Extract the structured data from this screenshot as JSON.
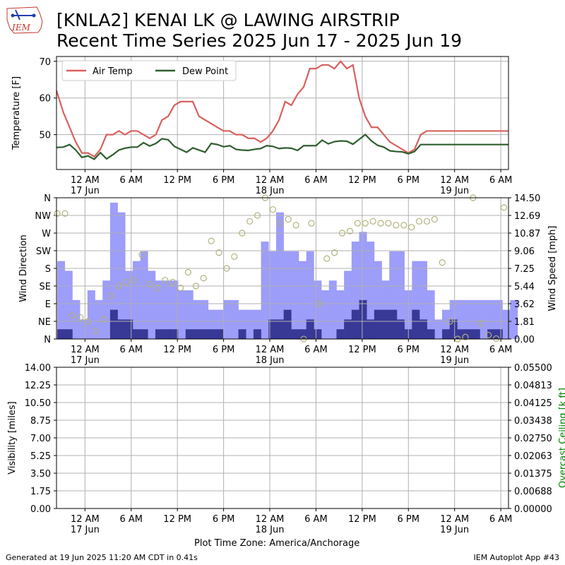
{
  "header": {
    "logo_text": "IEM",
    "title_line1": "[KNLA2] KENAI LK @ LAWING AIRSTRIP",
    "title_line2": "Recent Time Series 2025 Jun 17 - 2025 Jun 19"
  },
  "footer": {
    "generated": "Generated at 19 Jun 2025 11:20 AM CDT in 0.41s",
    "app": "IEM Autoplot App #43",
    "timezone": "Plot Time Zone: America/Anchorage"
  },
  "colors": {
    "air_temp": "#d9605e",
    "dew_point": "#2e5e2e",
    "wind_speed": "#9d9dfa",
    "wind_gust": "#383897",
    "wind_dir": "#b2b27c",
    "grid": "#b0b0b0",
    "ceiling_axis": "#008000"
  },
  "chart_data": [
    {
      "type": "line",
      "ylabel": "Temperature [F]",
      "ylim": [
        40.5,
        71.3
      ],
      "yticks": [
        50,
        60,
        70
      ],
      "xlim": [
        -3.7,
        55
      ],
      "x_unit": "hours since 17 Jun 12 AM",
      "xticks": [
        {
          "x": 0,
          "label": "12 AM",
          "sub": "17 Jun"
        },
        {
          "x": 6,
          "label": "6 AM",
          "sub": ""
        },
        {
          "x": 12,
          "label": "12 PM",
          "sub": ""
        },
        {
          "x": 18,
          "label": "6 PM",
          "sub": ""
        },
        {
          "x": 24,
          "label": "12 AM",
          "sub": "18 Jun"
        },
        {
          "x": 30,
          "label": "6 AM",
          "sub": ""
        },
        {
          "x": 36,
          "label": "12 PM",
          "sub": ""
        },
        {
          "x": 42,
          "label": "6 PM",
          "sub": ""
        },
        {
          "x": 48,
          "label": "12 AM",
          "sub": "19 Jun"
        },
        {
          "x": 54,
          "label": "6 AM",
          "sub": ""
        }
      ],
      "legend": "top-left",
      "grid": true,
      "series": [
        {
          "name": "Air Temp",
          "x": [
            -3.7,
            -2.8,
            -2,
            -1.2,
            -0.4,
            0.4,
            1.2,
            2,
            2.8,
            3.6,
            4.4,
            5.2,
            6,
            6.8,
            7.6,
            8.4,
            9.2,
            10,
            10.8,
            11.6,
            12.4,
            13.2,
            14,
            14.8,
            15.6,
            16.4,
            17.2,
            18,
            18.8,
            19.6,
            20.4,
            21.2,
            22,
            22.8,
            23.6,
            24.4,
            25.2,
            26,
            26.8,
            27.6,
            28.4,
            29.2,
            30,
            30.8,
            31.6,
            32.4,
            33.2,
            34,
            34.8,
            35.6,
            36.4,
            37.2,
            38,
            38.8,
            39.6,
            40.4,
            41.2,
            42,
            42.8,
            43.6,
            44.4,
            45.2,
            46,
            46.8,
            47.6,
            48.4,
            49.2,
            50,
            50.8,
            51.6,
            52.4,
            53.2,
            54,
            54.8,
            55
          ],
          "values": [
            62,
            56,
            52,
            48,
            45,
            45,
            44,
            46,
            50,
            50,
            51,
            50,
            51,
            51,
            50,
            49,
            50,
            54,
            55,
            58,
            59,
            59,
            59,
            55,
            54,
            53,
            52,
            51,
            51,
            50,
            50,
            49,
            49,
            48,
            49,
            51,
            54,
            59,
            58,
            61,
            63,
            68,
            68,
            69,
            69,
            68,
            70,
            68,
            69,
            60,
            55,
            52,
            52,
            50,
            48,
            47,
            46,
            45,
            46,
            50,
            51,
            51,
            51,
            51,
            51,
            51,
            51,
            51,
            51,
            51,
            51,
            51,
            51,
            51,
            51
          ],
          "values_note": ""
        },
        {
          "name": "Dew Point",
          "values": [
            46.5,
            46.6,
            47.3,
            45.8,
            43.8,
            44.2,
            43.3,
            45.1,
            43.4,
            44.5,
            45.8,
            46.3,
            46.6,
            46.6,
            47.8,
            46.9,
            47.6,
            48.9,
            48.6,
            46.8,
            46.0,
            45.2,
            46.4,
            45.8,
            45.2,
            47.6,
            47.3,
            46.7,
            47.0,
            46.0,
            45.8,
            45.7,
            46.0,
            46.2,
            47.0,
            46.8,
            46.2,
            46.4,
            46.3,
            45.7,
            47.0,
            47.0,
            47.0,
            48.5,
            47.5,
            48.1,
            48.3,
            48.2,
            47.4,
            48.7,
            50.0,
            48.3,
            47.1,
            46.6,
            45.6,
            45.4,
            45.3,
            44.8,
            45.4,
            47.3,
            47.3,
            47.3,
            47.3,
            47.3,
            47.3,
            47.3,
            47.3,
            47.3,
            47.3,
            47.3,
            47.3,
            47.3,
            47.3,
            47.3,
            47.3
          ]
        }
      ]
    },
    {
      "type": "bar",
      "ylabel": "Wind Direction",
      "y2label": "Wind Speed [mph]",
      "dir_ticks": [
        "N",
        "NE",
        "E",
        "SE",
        "S",
        "SW",
        "W",
        "NW",
        "N"
      ],
      "speed_ticks": [
        "0.00",
        "1.81",
        "3.62",
        "5.44",
        "7.25",
        "9.06",
        "10.87",
        "12.69",
        "14.50"
      ],
      "speed_lim": [
        0,
        14.5
      ],
      "bar_start": -3.6,
      "bar_step": 0.98,
      "series": [
        {
          "name": "Wind Speed",
          "values": [
            8,
            7,
            4,
            2,
            5,
            4,
            6,
            14,
            13,
            7,
            8,
            9,
            7,
            6,
            6,
            6,
            5,
            5,
            4,
            4,
            3,
            3,
            4,
            4,
            3,
            3,
            3,
            10,
            9,
            13,
            9,
            9,
            8,
            9,
            6,
            5,
            6,
            5,
            7,
            10,
            11,
            10,
            8,
            6,
            9,
            9,
            5,
            8,
            8,
            5,
            2,
            3,
            4,
            4,
            4,
            4,
            4,
            4,
            4,
            3,
            4
          ]
        },
        {
          "name": "Wind Gust",
          "values": [
            1,
            1,
            0,
            0,
            0,
            0,
            0,
            3,
            2,
            2,
            1,
            1,
            0,
            1,
            1,
            1,
            0,
            1,
            1,
            1,
            1,
            1,
            0,
            0,
            1,
            0,
            1,
            0,
            2,
            2,
            3,
            1,
            1,
            2,
            1,
            0,
            0,
            1,
            2,
            3,
            4,
            2,
            3,
            3,
            3,
            2,
            1,
            3,
            2,
            1,
            0,
            1,
            2,
            1,
            1,
            1,
            0,
            1,
            1,
            0,
            0
          ]
        },
        {
          "name": "Wind Direction",
          "type": "scatter",
          "x": [
            -3.6,
            -2.6,
            -1.6,
            -0.6,
            0.4,
            1.4,
            2.4,
            3.4,
            4.4,
            5.4,
            6.4,
            7.4,
            8.4,
            9.4,
            10.4,
            11.4,
            12.4,
            13.4,
            14.4,
            15.4,
            16.4,
            17.4,
            18.4,
            19.4,
            20.4,
            21.4,
            22.4,
            23.4,
            24.4,
            25.4,
            26.4,
            27.4,
            28.4,
            29.4,
            30.4,
            31.4,
            32.4,
            33.4,
            34.4,
            35.4,
            36.4,
            37.4,
            38.4,
            39.4,
            40.4,
            41.4,
            42.4,
            43.4,
            44.4,
            45.4,
            46.4,
            47.4,
            48.4,
            49.4,
            50.4,
            51.4,
            52.4,
            53.4,
            54.4
          ],
          "values": [
            320,
            320,
            60,
            55,
            45,
            20,
            50,
            110,
            135,
            145,
            150,
            215,
            140,
            130,
            150,
            145,
            130,
            170,
            135,
            155,
            250,
            220,
            180,
            210,
            270,
            300,
            315,
            360,
            330,
            295,
            305,
            290,
            0,
            295,
            90,
            205,
            220,
            270,
            275,
            295,
            295,
            300,
            295,
            295,
            290,
            290,
            285,
            300,
            300,
            305,
            195,
            45,
            0,
            5,
            360,
            40,
            10,
            1,
            335
          ]
        }
      ]
    },
    {
      "type": "line",
      "ylabel": "Visibility [miles]",
      "y2label": "Overcast Ceiling [k ft]",
      "yticks": [
        "0.00",
        "1.75",
        "3.50",
        "5.25",
        "7.00",
        "8.75",
        "10.50",
        "12.25",
        "14.00"
      ],
      "y2ticks": [
        "0.00000",
        "0.00688",
        "0.01375",
        "0.02063",
        "0.02750",
        "0.03438",
        "0.04125",
        "0.04813",
        "0.05500"
      ],
      "series": []
    }
  ]
}
